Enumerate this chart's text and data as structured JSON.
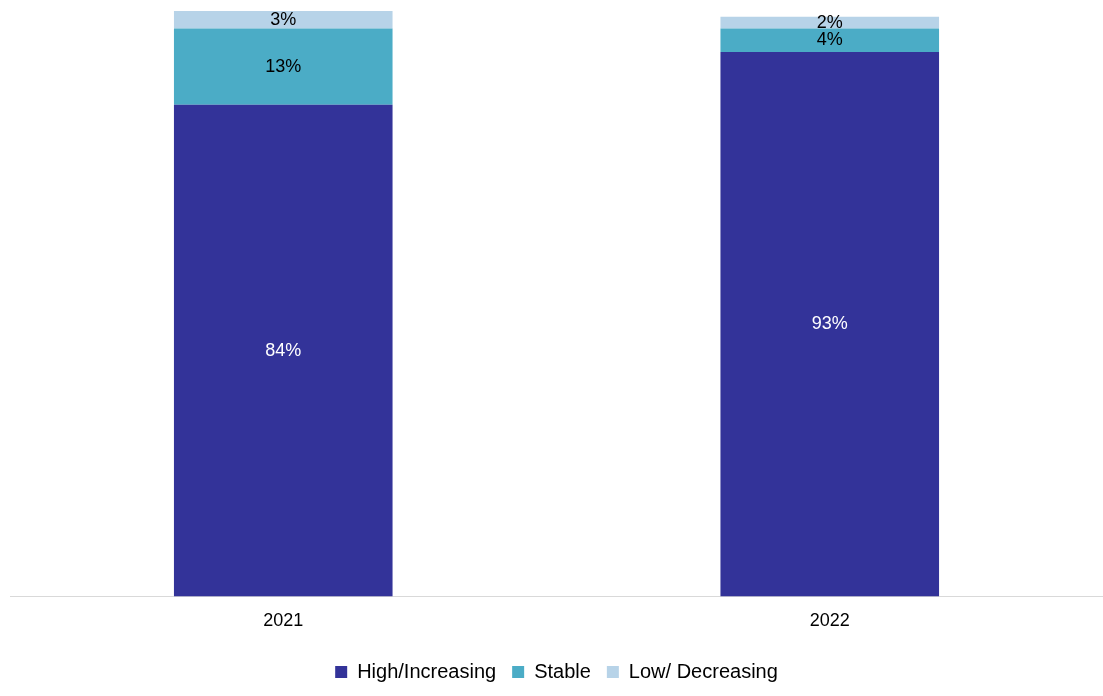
{
  "chart_data": {
    "type": "bar",
    "stacked": true,
    "categories": [
      "2021",
      "2022"
    ],
    "series": [
      {
        "name": "High/Increasing",
        "color": "#333399",
        "values": [
          84,
          93
        ],
        "value_labels": [
          "84%",
          "93%"
        ]
      },
      {
        "name": "Stable",
        "color": "#4bacc6",
        "values": [
          13,
          4
        ],
        "value_labels": [
          "13%",
          "4%"
        ]
      },
      {
        "name": "Low/ Decreasing",
        "color": "#b7d3e8",
        "values": [
          3,
          2
        ],
        "value_labels": [
          "3%",
          "2%"
        ]
      }
    ],
    "legend": "bottom",
    "grid": false
  }
}
